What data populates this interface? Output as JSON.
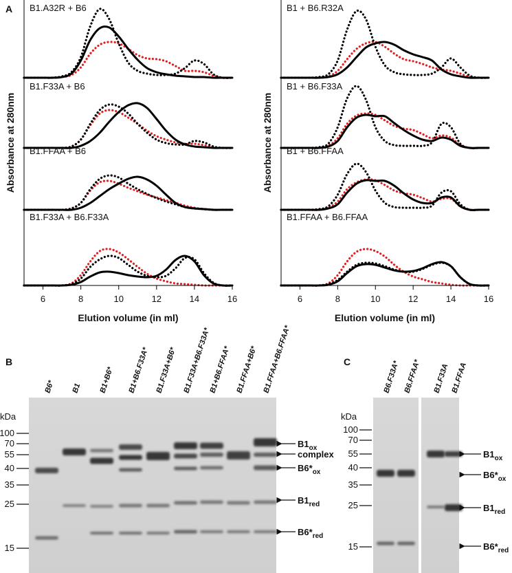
{
  "panel_labels": [
    "A",
    "B",
    "C"
  ],
  "chart_data": [
    {
      "type": "line",
      "title": "B1.A32R + B6",
      "ylabel": "Absorbance at 280nm",
      "xlim": [
        5,
        16
      ],
      "ylim": [
        0,
        1
      ],
      "x": [
        5,
        5.5,
        6,
        6.5,
        7,
        7.5,
        8,
        8.5,
        9,
        9.5,
        10,
        10.5,
        11,
        11.5,
        12,
        12.5,
        13,
        13.5,
        14,
        14.5,
        15,
        15.5,
        16
      ],
      "series": [
        {
          "color": "#e02020",
          "dash": "dotted",
          "values": [
            0,
            0,
            0,
            0,
            0.01,
            0.04,
            0.15,
            0.35,
            0.48,
            0.52,
            0.5,
            0.42,
            0.33,
            0.28,
            0.27,
            0.24,
            0.17,
            0.1,
            0.1,
            0.08,
            0.03,
            0,
            0
          ]
        },
        {
          "color": "#000000",
          "dash": "dotted",
          "values": [
            0,
            0,
            0,
            0,
            0.02,
            0.08,
            0.3,
            0.75,
            1,
            0.85,
            0.5,
            0.22,
            0.1,
            0.06,
            0.04,
            0.04,
            0.06,
            0.14,
            0.25,
            0.2,
            0.05,
            0,
            0
          ]
        },
        {
          "color": "#000000",
          "dash": "solid",
          "values": [
            0,
            0,
            0,
            0,
            0.01,
            0.06,
            0.25,
            0.55,
            0.72,
            0.73,
            0.6,
            0.42,
            0.26,
            0.14,
            0.08,
            0.05,
            0.03,
            0.02,
            0.01,
            0.01,
            0,
            0,
            0
          ]
        }
      ]
    },
    {
      "type": "line",
      "title": "B1.F33A + B6",
      "xlim": [
        5,
        16
      ],
      "ylim": [
        0,
        1
      ],
      "x": [
        5,
        5.5,
        6,
        6.5,
        7,
        7.5,
        8,
        8.5,
        9,
        9.5,
        10,
        10.5,
        11,
        11.5,
        12,
        12.5,
        13,
        13.5,
        14,
        14.5,
        15,
        15.5,
        16
      ],
      "series": [
        {
          "color": "#e02020",
          "dash": "dotted",
          "values": [
            0,
            0,
            0,
            0,
            0,
            0.02,
            0.12,
            0.33,
            0.5,
            0.55,
            0.52,
            0.44,
            0.35,
            0.25,
            0.17,
            0.12,
            0.08,
            0.06,
            0.06,
            0.04,
            0.01,
            0,
            0
          ]
        },
        {
          "color": "#000000",
          "dash": "dotted",
          "values": [
            0,
            0,
            0,
            0,
            0,
            0.02,
            0.12,
            0.35,
            0.55,
            0.63,
            0.6,
            0.5,
            0.35,
            0.22,
            0.12,
            0.07,
            0.05,
            0.05,
            0.1,
            0.08,
            0.02,
            0,
            0
          ]
        },
        {
          "color": "#000000",
          "dash": "solid",
          "values": [
            0,
            0,
            0,
            0,
            0,
            0,
            0.03,
            0.1,
            0.22,
            0.38,
            0.52,
            0.62,
            0.65,
            0.58,
            0.42,
            0.25,
            0.12,
            0.05,
            0.02,
            0.01,
            0,
            0,
            0
          ]
        }
      ]
    },
    {
      "type": "line",
      "title": "B1.FFAA + B6",
      "xlim": [
        5,
        16
      ],
      "ylim": [
        0,
        1
      ],
      "x": [
        5,
        5.5,
        6,
        6.5,
        7,
        7.5,
        8,
        8.5,
        9,
        9.5,
        10,
        10.5,
        11,
        11.5,
        12,
        12.5,
        13,
        13.5,
        14,
        14.5,
        15,
        15.5,
        16
      ],
      "series": [
        {
          "color": "#e02020",
          "dash": "dotted",
          "values": [
            0,
            0,
            0,
            0,
            0,
            0.02,
            0.1,
            0.28,
            0.4,
            0.42,
            0.38,
            0.32,
            0.27,
            0.22,
            0.18,
            0.14,
            0.1,
            0.06,
            0.03,
            0.01,
            0,
            0,
            0
          ]
        },
        {
          "color": "#000000",
          "dash": "dotted",
          "values": [
            0,
            0,
            0,
            0,
            0,
            0.02,
            0.1,
            0.3,
            0.45,
            0.5,
            0.47,
            0.38,
            0.3,
            0.23,
            0.17,
            0.12,
            0.08,
            0.04,
            0.02,
            0.01,
            0,
            0,
            0
          ]
        },
        {
          "color": "#000000",
          "dash": "solid",
          "values": [
            0,
            0,
            0,
            0,
            0,
            0,
            0.03,
            0.1,
            0.2,
            0.3,
            0.38,
            0.45,
            0.48,
            0.44,
            0.35,
            0.22,
            0.1,
            0.04,
            0.02,
            0.01,
            0,
            0,
            0
          ]
        }
      ]
    },
    {
      "type": "line",
      "title": "B1.F33A + B6.F33A",
      "xlabel": "Elution volume (in ml)",
      "xlim": [
        5,
        16
      ],
      "ylim": [
        0,
        1
      ],
      "xticks": [
        6,
        8,
        10,
        12,
        14,
        16
      ],
      "x": [
        5,
        5.5,
        6,
        6.5,
        7,
        7.5,
        8,
        8.5,
        9,
        9.5,
        10,
        10.5,
        11,
        11.5,
        12,
        12.5,
        13,
        13.5,
        14,
        14.5,
        15,
        15.5,
        16
      ],
      "series": [
        {
          "color": "#e02020",
          "dash": "dotted",
          "values": [
            0,
            0,
            0,
            0,
            0,
            0.03,
            0.15,
            0.35,
            0.5,
            0.53,
            0.48,
            0.38,
            0.27,
            0.17,
            0.1,
            0.06,
            0.03,
            0.02,
            0.01,
            0,
            0,
            0,
            0
          ]
        },
        {
          "color": "#000000",
          "dash": "dotted",
          "values": [
            0,
            0,
            0,
            0,
            0,
            0.02,
            0.1,
            0.27,
            0.38,
            0.43,
            0.4,
            0.3,
            0.2,
            0.14,
            0.12,
            0.14,
            0.25,
            0.4,
            0.38,
            0.18,
            0.04,
            0,
            0
          ]
        },
        {
          "color": "#000000",
          "dash": "solid",
          "values": [
            0,
            0,
            0,
            0,
            0,
            0.01,
            0.05,
            0.13,
            0.19,
            0.2,
            0.18,
            0.15,
            0.13,
            0.12,
            0.14,
            0.23,
            0.37,
            0.43,
            0.35,
            0.15,
            0.03,
            0,
            0
          ]
        }
      ]
    },
    {
      "type": "line",
      "title": "B1 + B6.R32A",
      "ylabel": "Absorbance at 280nm",
      "xlim": [
        5,
        16
      ],
      "ylim": [
        0,
        1
      ],
      "x": [
        5,
        5.5,
        6,
        6.5,
        7,
        7.5,
        8,
        8.5,
        9,
        9.5,
        10,
        10.5,
        11,
        11.5,
        12,
        12.5,
        13,
        13.5,
        14,
        14.5,
        15,
        15.5,
        16
      ],
      "series": [
        {
          "color": "#e02020",
          "dash": "dotted",
          "values": [
            0,
            0,
            0,
            0,
            0,
            0.02,
            0.1,
            0.27,
            0.42,
            0.5,
            0.52,
            0.45,
            0.35,
            0.27,
            0.24,
            0.2,
            0.15,
            0.12,
            0.1,
            0.06,
            0.01,
            0,
            0
          ]
        },
        {
          "color": "#000000",
          "dash": "dotted",
          "values": [
            0,
            0,
            0,
            0,
            0.01,
            0.05,
            0.25,
            0.7,
            0.97,
            0.85,
            0.45,
            0.18,
            0.08,
            0.05,
            0.04,
            0.04,
            0.06,
            0.15,
            0.28,
            0.15,
            0.03,
            0,
            0
          ]
        },
        {
          "color": "#000000",
          "dash": "solid",
          "values": [
            0,
            0,
            0,
            0,
            0,
            0.01,
            0.05,
            0.15,
            0.3,
            0.44,
            0.5,
            0.52,
            0.48,
            0.4,
            0.34,
            0.3,
            0.25,
            0.12,
            0.05,
            0.02,
            0,
            0,
            0
          ]
        }
      ]
    },
    {
      "type": "line",
      "title": "B1 + B6.F33A",
      "xlim": [
        5,
        16
      ],
      "ylim": [
        0,
        1
      ],
      "x": [
        5,
        5.5,
        6,
        6.5,
        7,
        7.5,
        8,
        8.5,
        9,
        9.5,
        10,
        10.5,
        11,
        11.5,
        12,
        12.5,
        13,
        13.5,
        14,
        14.5,
        15,
        15.5,
        16
      ],
      "series": [
        {
          "color": "#e02020",
          "dash": "dotted",
          "values": [
            0,
            0,
            0,
            0,
            0,
            0.03,
            0.14,
            0.35,
            0.47,
            0.5,
            0.48,
            0.4,
            0.32,
            0.28,
            0.26,
            0.2,
            0.14,
            0.18,
            0.15,
            0.04,
            0,
            0,
            0
          ]
        },
        {
          "color": "#000000",
          "dash": "dotted",
          "values": [
            0,
            0,
            0,
            0,
            0.01,
            0.06,
            0.3,
            0.72,
            0.9,
            0.7,
            0.3,
            0.1,
            0.04,
            0.03,
            0.03,
            0.03,
            0.08,
            0.35,
            0.3,
            0.06,
            0,
            0,
            0
          ]
        },
        {
          "color": "#000000",
          "dash": "solid",
          "values": [
            0,
            0,
            0,
            0,
            0,
            0.02,
            0.1,
            0.3,
            0.44,
            0.48,
            0.46,
            0.46,
            0.36,
            0.26,
            0.18,
            0.12,
            0.1,
            0.15,
            0.12,
            0.03,
            0,
            0,
            0
          ]
        }
      ]
    },
    {
      "type": "line",
      "title": "B1 + B6.FFAA",
      "xlim": [
        5,
        16
      ],
      "ylim": [
        0,
        1
      ],
      "x": [
        5,
        5.5,
        6,
        6.5,
        7,
        7.5,
        8,
        8.5,
        9,
        9.5,
        10,
        10.5,
        11,
        11.5,
        12,
        12.5,
        13,
        13.5,
        14,
        14.5,
        15,
        15.5,
        16
      ],
      "series": [
        {
          "color": "#e02020",
          "dash": "dotted",
          "values": [
            0,
            0,
            0,
            0,
            0,
            0.03,
            0.12,
            0.3,
            0.4,
            0.44,
            0.43,
            0.36,
            0.28,
            0.24,
            0.22,
            0.17,
            0.12,
            0.16,
            0.16,
            0.05,
            0,
            0,
            0
          ]
        },
        {
          "color": "#000000",
          "dash": "dotted",
          "values": [
            0,
            0,
            0,
            0,
            0.01,
            0.05,
            0.22,
            0.52,
            0.67,
            0.55,
            0.28,
            0.1,
            0.04,
            0.03,
            0.03,
            0.03,
            0.06,
            0.25,
            0.27,
            0.08,
            0,
            0,
            0
          ]
        },
        {
          "color": "#000000",
          "dash": "solid",
          "values": [
            0,
            0,
            0,
            0,
            0,
            0.02,
            0.08,
            0.25,
            0.38,
            0.43,
            0.42,
            0.42,
            0.35,
            0.24,
            0.15,
            0.1,
            0.1,
            0.18,
            0.18,
            0.05,
            0,
            0,
            0
          ]
        }
      ]
    },
    {
      "type": "line",
      "title": "B1.FFAA + B6.FFAA",
      "xlabel": "Elution volume (in ml)",
      "xlim": [
        5,
        16
      ],
      "ylim": [
        0,
        1
      ],
      "xticks": [
        6,
        8,
        10,
        12,
        14,
        16
      ],
      "x": [
        5,
        5.5,
        6,
        6.5,
        7,
        7.5,
        8,
        8.5,
        9,
        9.5,
        10,
        10.5,
        11,
        11.5,
        12,
        12.5,
        13,
        13.5,
        14,
        14.5,
        15,
        15.5,
        16
      ],
      "series": [
        {
          "color": "#e02020",
          "dash": "dotted",
          "values": [
            0,
            0,
            0,
            0,
            0,
            0.03,
            0.15,
            0.35,
            0.49,
            0.53,
            0.5,
            0.42,
            0.3,
            0.2,
            0.13,
            0.09,
            0.05,
            0.03,
            0.01,
            0,
            0,
            0,
            0
          ]
        },
        {
          "color": "#000000",
          "dash": "dotted",
          "values": [
            0,
            0,
            0,
            0,
            0,
            0.02,
            0.08,
            0.2,
            0.3,
            0.33,
            0.32,
            0.28,
            0.23,
            0.2,
            0.2,
            0.24,
            0.3,
            0.33,
            0.28,
            0.12,
            0.02,
            0,
            0
          ]
        },
        {
          "color": "#000000",
          "dash": "solid",
          "values": [
            0,
            0,
            0,
            0,
            0,
            0.01,
            0.06,
            0.18,
            0.28,
            0.31,
            0.3,
            0.26,
            0.22,
            0.2,
            0.21,
            0.25,
            0.31,
            0.34,
            0.28,
            0.12,
            0.02,
            0,
            0
          ]
        }
      ]
    }
  ],
  "gels": [
    {
      "units": "kDa",
      "markers": [
        100,
        70,
        55,
        40,
        35,
        25,
        15
      ],
      "lanes": [
        "B6*",
        "B1",
        "B1+B6*",
        "B1+B6.F33A*",
        "B1.F33A+B6*",
        "B1.F33A+B6.F33A*",
        "B1+B6.FFAA*",
        "B1.FFAA+B6*",
        "B1.FFAA+B6.FFAA*"
      ],
      "bands": [
        {
          "text": "B1",
          "sub": "ox"
        },
        {
          "text": "complex"
        },
        {
          "text": "B6*",
          "sub": "ox"
        },
        {
          "text": "B1",
          "sub": "red"
        },
        {
          "text": "B6*",
          "sub": "red"
        }
      ]
    },
    {
      "units": "kDa",
      "markers": [
        100,
        70,
        55,
        40,
        35,
        25,
        15
      ],
      "lanes": [
        "B6.F33A*",
        "B6.FFAA*",
        "B1.F33A",
        "B1.FFAA"
      ],
      "bands": [
        {
          "text": "B1",
          "sub": "ox"
        },
        {
          "text": "B6*",
          "sub": "ox"
        },
        {
          "text": "B1",
          "sub": "red"
        },
        {
          "text": "B6*",
          "sub": "red"
        }
      ]
    }
  ]
}
